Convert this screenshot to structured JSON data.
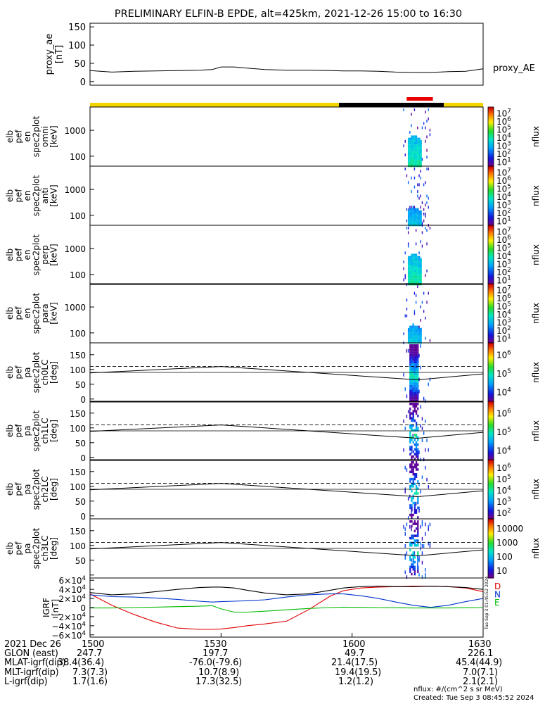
{
  "title": "PRELIMINARY ELFIN-B EPDE, alt=425km, 2021-12-26 15:00 to 16:30",
  "time_axis": {
    "ticks": [
      "1500",
      "1530",
      "1600",
      "1630"
    ],
    "rows": [
      {
        "label": "2021 Dec 26",
        "values": [
          "1500",
          "1530",
          "1600",
          "1630"
        ]
      },
      {
        "label": "GLON (east)",
        "values": [
          "247.7",
          "197.7",
          "49.7",
          "226.1"
        ]
      },
      {
        "label": "MLAT-igrf(dip)",
        "values": [
          "38.4(36.4)",
          "-76.0(-79.6)",
          "21.4(17.5)",
          "45.4(44.9)"
        ]
      },
      {
        "label": "MLT-igrf(dip)",
        "values": [
          "7.3(7.3)",
          "10.7(8.9)",
          "19.4(19.5)",
          "7.0(7.1)"
        ]
      },
      {
        "label": "L-igrf(dip)",
        "values": [
          "1.7(1.6)",
          "17.3(32.5)",
          "1.2(1.2)",
          "2.1(2.1)"
        ]
      }
    ]
  },
  "footer": {
    "units": "nflux: #/(cm^2 s sr MeV)",
    "created": "Created: Tue Sep  3 08:45:52 2024"
  },
  "side_note": "Tue Sep  3 01:45:52 2024",
  "colors": {
    "sunlight_bar": "#f2d400",
    "shadow_bar": "#000000",
    "science_zone_bar": "#e80000",
    "D_component": "#e00000",
    "N_component": "#0033cc",
    "E_component": "#00bb00"
  },
  "chart_data": [
    {
      "type": "line",
      "ylabel": "proxy_ae [nT]",
      "legend": "proxy_AE",
      "ylim": [
        -10,
        160
      ],
      "yticks": [
        "0",
        "50",
        "100",
        "150"
      ],
      "x": [
        0,
        5,
        10,
        15,
        20,
        25,
        28,
        30,
        33,
        36,
        40,
        45,
        50,
        55,
        58,
        62,
        66,
        70,
        74,
        78,
        82,
        86,
        90
      ],
      "y": [
        30,
        26,
        28,
        29,
        30,
        31,
        33,
        40,
        40,
        37,
        33,
        31,
        31,
        30,
        29,
        29,
        28,
        26,
        25,
        25,
        27,
        28,
        35
      ]
    },
    {
      "type": "bar",
      "name": "orbit status bar",
      "segments": [
        {
          "from_min": 0,
          "to_min": 57,
          "state": "sunlight"
        },
        {
          "from_min": 57,
          "to_min": 81,
          "state": "shadow"
        },
        {
          "from_min": 81,
          "to_min": 90,
          "state": "sunlight"
        }
      ],
      "science_zone": [
        72.5,
        78.5
      ]
    },
    {
      "type": "heatmap",
      "ylabel": [
        "elb",
        "pef",
        "en",
        "spec2plot",
        "omni",
        "[keV]"
      ],
      "yscale": "log",
      "yticks": [
        "100",
        "1000"
      ],
      "cbar_ticks": [
        "10",
        "10",
        "10",
        "10",
        "10",
        "10",
        "10"
      ],
      "cbar_exps": [
        "1",
        "2",
        "3",
        "4",
        "5",
        "6",
        "7"
      ],
      "cbar_label": "nflux",
      "event_min": [
        71.7,
        78.0
      ],
      "peak_energy_keV": 600
    },
    {
      "type": "heatmap",
      "ylabel": [
        "elb",
        "pef",
        "en",
        "spec2plot",
        "anti",
        "[keV]"
      ],
      "yscale": "log",
      "yticks": [
        "100",
        "1000"
      ],
      "cbar_ticks": [
        "10",
        "10",
        "10",
        "10",
        "10",
        "10",
        "10"
      ],
      "cbar_exps": [
        "1",
        "2",
        "3",
        "4",
        "5",
        "6",
        "7"
      ],
      "cbar_label": "nflux",
      "event_min": [
        71.7,
        78.0
      ],
      "peak_energy_keV": 200
    },
    {
      "type": "heatmap",
      "ylabel": [
        "elb",
        "pef",
        "en",
        "spec2plot",
        "perp",
        "[keV]"
      ],
      "yscale": "log",
      "yticks": [
        "100",
        "1000"
      ],
      "cbar_ticks": [
        "10",
        "10",
        "10",
        "10",
        "10",
        "10",
        "10"
      ],
      "cbar_exps": [
        "1",
        "2",
        "3",
        "4",
        "5",
        "6",
        "7"
      ],
      "cbar_label": "nflux",
      "event_min": [
        71.7,
        78.0
      ],
      "peak_energy_keV": 600
    },
    {
      "type": "heatmap",
      "ylabel": [
        "elb",
        "pef",
        "en",
        "spec2plot",
        "para",
        "[keV]"
      ],
      "yscale": "log",
      "yticks": [
        "100",
        "1000"
      ],
      "cbar_ticks": [
        "10",
        "10",
        "10",
        "10",
        "10",
        "10",
        "10"
      ],
      "cbar_exps": [
        "1",
        "2",
        "3",
        "4",
        "5",
        "6",
        "7"
      ],
      "cbar_label": "nflux",
      "event_min": [
        71.7,
        78.0
      ],
      "peak_energy_keV": 200
    },
    {
      "type": "heatmap",
      "ylabel": [
        "elb",
        "pef",
        "pa",
        "spec2plot",
        "ch0LC",
        "[deg]"
      ],
      "ylim": [
        -10,
        190
      ],
      "yticks": [
        "0",
        "50",
        "100",
        "150"
      ],
      "cbar_ticks": [
        "10",
        "10",
        "10"
      ],
      "cbar_exps": [
        "4",
        "5",
        "6"
      ],
      "cbar_label": "nflux",
      "dashed_line_deg": 110,
      "loss_cone_deg": [
        88,
        110,
        65,
        85
      ],
      "event_min": [
        71.7,
        78.0
      ]
    },
    {
      "type": "heatmap",
      "ylabel": [
        "elb",
        "pef",
        "pa",
        "spec2plot",
        "ch1LC",
        "[deg]"
      ],
      "ylim": [
        -10,
        190
      ],
      "yticks": [
        "0",
        "50",
        "100",
        "150"
      ],
      "cbar_ticks": [
        "10",
        "10",
        "10"
      ],
      "cbar_exps": [
        "4",
        "5",
        "6"
      ],
      "cbar_label": "nflux",
      "dashed_line_deg": 110,
      "loss_cone_deg": [
        88,
        110,
        65,
        85
      ],
      "event_min": [
        71.7,
        78.0
      ]
    },
    {
      "type": "heatmap",
      "ylabel": [
        "elb",
        "pef",
        "pa",
        "spec2plot",
        "ch2LC",
        "[deg]"
      ],
      "ylim": [
        -10,
        190
      ],
      "yticks": [
        "0",
        "50",
        "100",
        "150"
      ],
      "cbar_ticks": [
        "10",
        "10",
        "10",
        "10",
        "10"
      ],
      "cbar_exps": [
        "2",
        "3",
        "4",
        "5",
        "6"
      ],
      "cbar_label": "nflux",
      "dashed_line_deg": 110,
      "loss_cone_deg": [
        88,
        110,
        65,
        85
      ],
      "event_min": [
        71.7,
        78.0
      ]
    },
    {
      "type": "heatmap",
      "ylabel": [
        "elb",
        "pef",
        "pa",
        "spec2plot",
        "ch3LC",
        "[deg]"
      ],
      "ylim": [
        -10,
        190
      ],
      "yticks": [
        "50",
        "100",
        "150"
      ],
      "cbar_ticks": [
        "10",
        "100",
        "1000",
        "10000"
      ],
      "cbar_exps": [
        "",
        "",
        "",
        ""
      ],
      "cbar_label": "nflux",
      "dashed_line_deg": 110,
      "loss_cone_deg": [
        88,
        110,
        65,
        85
      ],
      "event_min": [
        71.7,
        78.0
      ]
    },
    {
      "type": "line",
      "ylabel": "IGRF [nT]",
      "ylim": [
        -65000,
        65000
      ],
      "yticks": [
        "6×10",
        "4×10",
        "2×10",
        "0",
        "−2×10",
        "−4×10",
        "−6×10"
      ],
      "ytick_exps": [
        "4",
        "4",
        "4",
        "",
        "4",
        "4",
        "4"
      ],
      "ytick_values": [
        60000,
        40000,
        20000,
        0,
        -20000,
        -40000,
        -60000
      ],
      "legend": [
        "D",
        "N",
        "E"
      ],
      "x": [
        0,
        5,
        10,
        15,
        20,
        25,
        28,
        30,
        33,
        36,
        40,
        45,
        50,
        55,
        58,
        62,
        66,
        70,
        74,
        78,
        82,
        86,
        90
      ],
      "series": [
        {
          "name": "D",
          "values": [
            30000,
            5000,
            -15000,
            -32000,
            -45000,
            -48000,
            -48000,
            -47000,
            -44000,
            -40000,
            -36000,
            -30000,
            -5000,
            25000,
            37000,
            43000,
            45000,
            46000,
            47000,
            47000,
            46000,
            43000,
            35000
          ]
        },
        {
          "name": "N",
          "values": [
            28000,
            24000,
            23000,
            21000,
            18000,
            14000,
            12000,
            13000,
            14000,
            15000,
            17000,
            23000,
            28000,
            30000,
            30000,
            26000,
            20000,
            12000,
            5000,
            500,
            5000,
            13000,
            20000
          ]
        },
        {
          "name": "E",
          "values": [
            -1000,
            -1000,
            0,
            1000,
            2000,
            3000,
            4000,
            -3000,
            -10000,
            -10000,
            -8000,
            -5000,
            -2000,
            0,
            1000,
            500,
            0,
            -500,
            -1000,
            -1000,
            -1000,
            -500,
            0
          ]
        },
        {
          "name": "Btot",
          "values": [
            33000,
            28000,
            30000,
            35000,
            40000,
            44000,
            45000,
            45000,
            43000,
            38000,
            32000,
            28000,
            30000,
            38000,
            43000,
            46000,
            47000,
            46000,
            46000,
            47000,
            46000,
            44000,
            40000
          ]
        }
      ]
    }
  ]
}
